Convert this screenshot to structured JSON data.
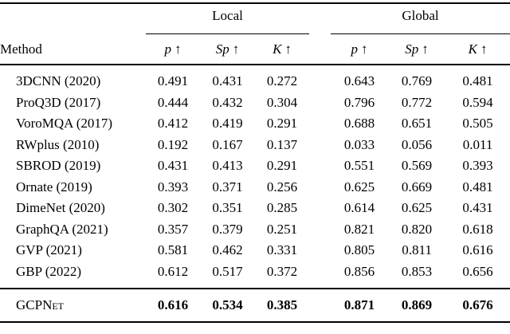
{
  "table": {
    "method_header": "Method",
    "groups": [
      {
        "label": "Local"
      },
      {
        "label": "Global"
      }
    ],
    "metric_headers": [
      {
        "letter": "p",
        "arrow": "↑"
      },
      {
        "letter": "Sp",
        "arrow": "↑"
      },
      {
        "letter": "K",
        "arrow": "↑"
      },
      {
        "letter": "p",
        "arrow": "↑"
      },
      {
        "letter": "Sp",
        "arrow": "↑"
      },
      {
        "letter": "K",
        "arrow": "↑"
      }
    ],
    "rows": [
      {
        "method": "3DCNN (2020)",
        "values": [
          "0.491",
          "0.431",
          "0.272",
          "0.643",
          "0.769",
          "0.481"
        ]
      },
      {
        "method": "ProQ3D (2017)",
        "values": [
          "0.444",
          "0.432",
          "0.304",
          "0.796",
          "0.772",
          "0.594"
        ]
      },
      {
        "method": "VoroMQA (2017)",
        "values": [
          "0.412",
          "0.419",
          "0.291",
          "0.688",
          "0.651",
          "0.505"
        ]
      },
      {
        "method": "RWplus (2010)",
        "values": [
          "0.192",
          "0.167",
          "0.137",
          "0.033",
          "0.056",
          "0.011"
        ]
      },
      {
        "method": "SBROD (2019)",
        "values": [
          "0.431",
          "0.413",
          "0.291",
          "0.551",
          "0.569",
          "0.393"
        ]
      },
      {
        "method": "Ornate (2019)",
        "values": [
          "0.393",
          "0.371",
          "0.256",
          "0.625",
          "0.669",
          "0.481"
        ]
      },
      {
        "method": "DimeNet (2020)",
        "values": [
          "0.302",
          "0.351",
          "0.285",
          "0.614",
          "0.625",
          "0.431"
        ]
      },
      {
        "method": "GraphQA (2021)",
        "values": [
          "0.357",
          "0.379",
          "0.251",
          "0.821",
          "0.820",
          "0.618"
        ]
      },
      {
        "method": "GVP (2021)",
        "values": [
          "0.581",
          "0.462",
          "0.331",
          "0.805",
          "0.811",
          "0.616"
        ]
      },
      {
        "method": "GBP (2022)",
        "values": [
          "0.612",
          "0.517",
          "0.372",
          "0.856",
          "0.853",
          "0.656"
        ]
      }
    ],
    "highlight_row": {
      "method": "GCPNet",
      "values": [
        "0.616",
        "0.534",
        "0.385",
        "0.871",
        "0.869",
        "0.676"
      ]
    }
  }
}
